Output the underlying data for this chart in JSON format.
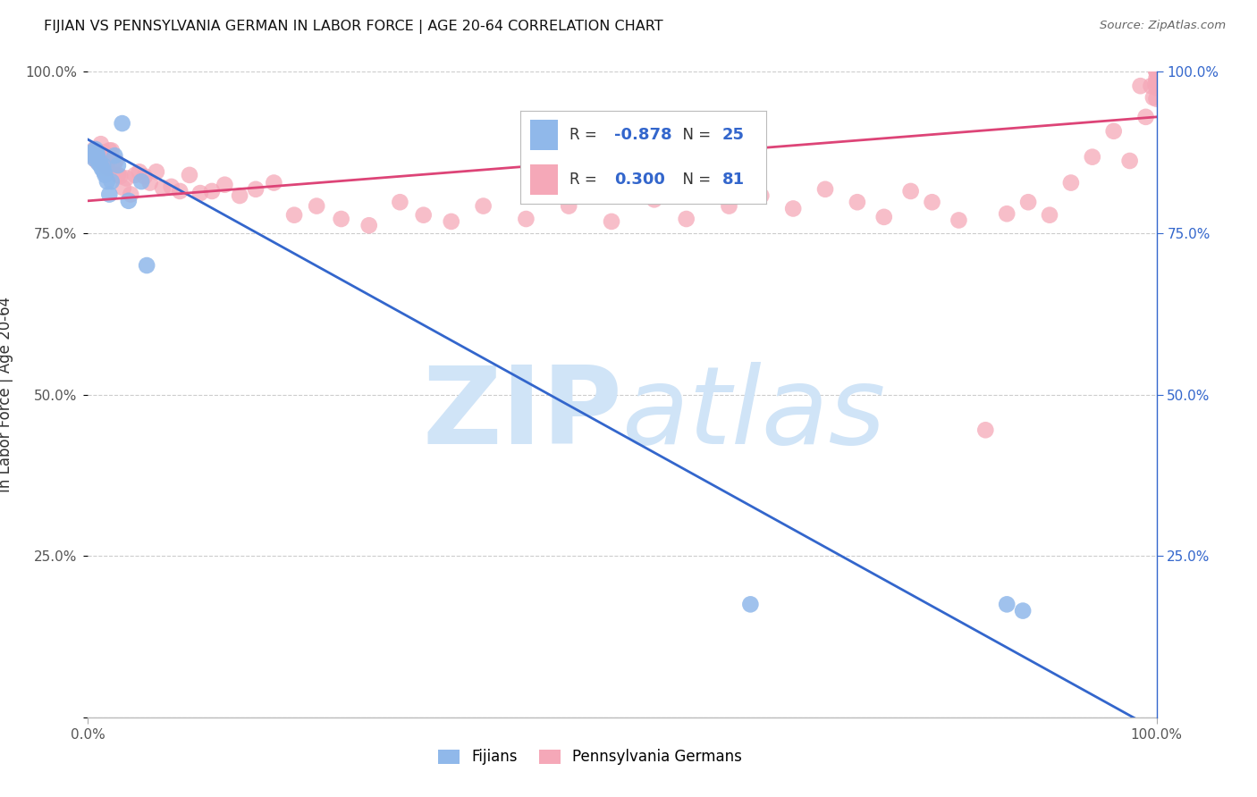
{
  "title": "FIJIAN VS PENNSYLVANIA GERMAN IN LABOR FORCE | AGE 20-64 CORRELATION CHART",
  "source_text": "Source: ZipAtlas.com",
  "ylabel": "In Labor Force | Age 20-64",
  "xlim": [
    0.0,
    1.0
  ],
  "ylim": [
    0.0,
    1.0
  ],
  "xtick_labels": [
    "0.0%",
    "100.0%"
  ],
  "ytick_values_left": [
    0.0,
    0.25,
    0.5,
    0.75,
    1.0
  ],
  "ytick_labels_left": [
    "",
    "25.0%",
    "50.0%",
    "75.0%",
    "100.0%"
  ],
  "ytick_values_right": [
    0.25,
    0.5,
    0.75,
    1.0
  ],
  "ytick_labels_right": [
    "25.0%",
    "50.0%",
    "75.0%",
    "100.0%"
  ],
  "grid_color": "#cccccc",
  "background_color": "#ffffff",
  "fijian_color": "#90b8ea",
  "penn_german_color": "#f5a8b8",
  "fijian_line_color": "#3366cc",
  "penn_german_line_color": "#dd4477",
  "watermark_color": "#d0e4f7",
  "legend_r_fijian": "-0.878",
  "legend_n_fijian": "25",
  "legend_r_penn": "0.300",
  "legend_n_penn": "81",
  "legend_color_blue": "#3366cc",
  "legend_r_color": "#333333",
  "legend_n_color": "#333333",
  "fijian_x": [
    0.003,
    0.005,
    0.006,
    0.007,
    0.008,
    0.009,
    0.01,
    0.011,
    0.012,
    0.013,
    0.014,
    0.015,
    0.016,
    0.018,
    0.02,
    0.022,
    0.025,
    0.028,
    0.032,
    0.038,
    0.05,
    0.055,
    0.62,
    0.86,
    0.875
  ],
  "fijian_y": [
    0.875,
    0.87,
    0.865,
    0.88,
    0.875,
    0.87,
    0.858,
    0.862,
    0.855,
    0.85,
    0.855,
    0.845,
    0.84,
    0.83,
    0.81,
    0.83,
    0.87,
    0.855,
    0.92,
    0.8,
    0.83,
    0.7,
    0.175,
    0.175,
    0.165
  ],
  "penn_x": [
    0.003,
    0.004,
    0.005,
    0.006,
    0.007,
    0.008,
    0.009,
    0.01,
    0.011,
    0.012,
    0.013,
    0.014,
    0.015,
    0.016,
    0.017,
    0.018,
    0.02,
    0.022,
    0.024,
    0.026,
    0.028,
    0.03,
    0.033,
    0.036,
    0.04,
    0.044,
    0.048,
    0.053,
    0.058,
    0.064,
    0.07,
    0.078,
    0.086,
    0.095,
    0.105,
    0.116,
    0.128,
    0.142,
    0.157,
    0.174,
    0.193,
    0.214,
    0.237,
    0.263,
    0.292,
    0.314,
    0.34,
    0.37,
    0.41,
    0.45,
    0.49,
    0.53,
    0.56,
    0.6,
    0.63,
    0.66,
    0.69,
    0.72,
    0.745,
    0.77,
    0.79,
    0.815,
    0.84,
    0.86,
    0.88,
    0.9,
    0.92,
    0.94,
    0.96,
    0.975,
    0.985,
    0.99,
    0.995,
    0.997,
    0.999,
    1.0,
    1.0,
    1.0,
    1.0,
    1.0,
    1.0
  ],
  "penn_y": [
    0.87,
    0.875,
    0.875,
    0.88,
    0.868,
    0.862,
    0.872,
    0.868,
    0.875,
    0.888,
    0.86,
    0.872,
    0.875,
    0.86,
    0.85,
    0.852,
    0.878,
    0.878,
    0.855,
    0.862,
    0.84,
    0.838,
    0.82,
    0.835,
    0.81,
    0.84,
    0.845,
    0.838,
    0.828,
    0.845,
    0.82,
    0.822,
    0.815,
    0.84,
    0.812,
    0.815,
    0.825,
    0.808,
    0.818,
    0.828,
    0.778,
    0.792,
    0.772,
    0.762,
    0.798,
    0.778,
    0.768,
    0.792,
    0.772,
    0.792,
    0.768,
    0.802,
    0.772,
    0.792,
    0.808,
    0.788,
    0.818,
    0.798,
    0.775,
    0.815,
    0.798,
    0.77,
    0.445,
    0.78,
    0.798,
    0.778,
    0.828,
    0.868,
    0.908,
    0.862,
    0.978,
    0.93,
    0.978,
    0.96,
    0.98,
    0.958,
    0.975,
    0.985,
    0.99,
    1.0,
    1.0
  ],
  "fijian_line_x": [
    0.0,
    1.0
  ],
  "fijian_line_y": [
    0.895,
    -0.02
  ],
  "penn_line_x": [
    0.0,
    1.0
  ],
  "penn_line_y": [
    0.8,
    0.93
  ]
}
